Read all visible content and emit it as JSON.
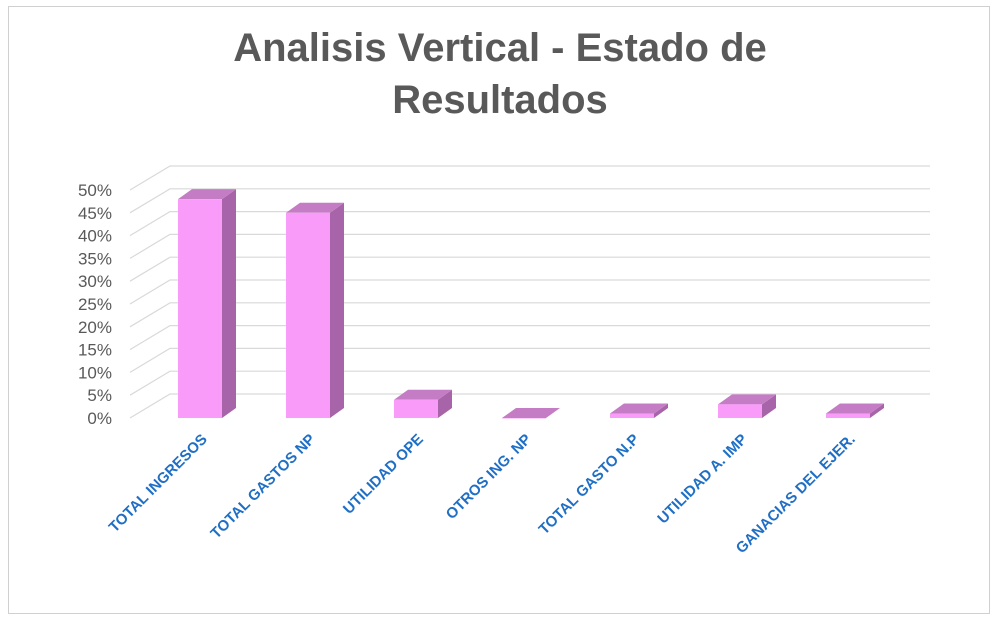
{
  "chart_data": {
    "type": "bar3d",
    "title": "Analisis Vertical - Estado de Resultados",
    "categories": [
      "TOTAL INGRESOS",
      "TOTAL GASTOS NP",
      "UTILIDAD OPE",
      "OTROS ING. NP",
      "TOTAL GASTO N.P",
      "UTILIDAD A. IMP",
      "GANACIAS DEL EJER."
    ],
    "values": [
      48,
      45,
      4,
      0,
      1,
      3,
      1
    ],
    "color": "#f99cf9",
    "ylim": [
      0,
      50
    ],
    "yticks": [
      {
        "value": 0,
        "label": "0%"
      },
      {
        "value": 5,
        "label": "5%"
      },
      {
        "value": 10,
        "label": "10%"
      },
      {
        "value": 15,
        "label": "15%"
      },
      {
        "value": 20,
        "label": "20%"
      },
      {
        "value": 25,
        "label": "25%"
      },
      {
        "value": 30,
        "label": "30%"
      },
      {
        "value": 35,
        "label": "35%"
      },
      {
        "value": 40,
        "label": "40%"
      },
      {
        "value": 45,
        "label": "45%"
      },
      {
        "value": 50,
        "label": "50%"
      }
    ],
    "grid": true
  }
}
